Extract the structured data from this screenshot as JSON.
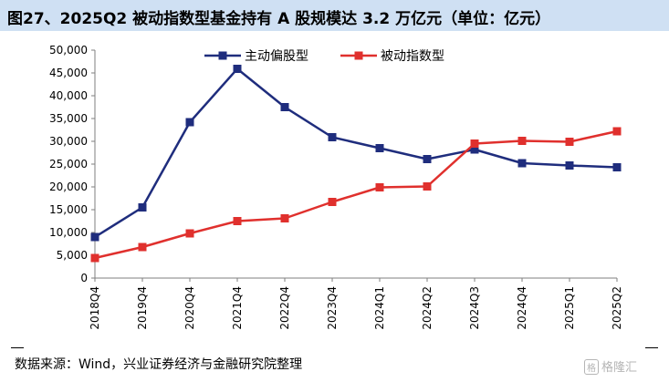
{
  "header": {
    "title": "图27、2025Q2 被动指数型基金持有 A 股规模达 3.2 万亿元（单位：亿元）"
  },
  "footer": {
    "source": "数据来源：Wind，兴业证券经济与金融研究院整理"
  },
  "watermark": {
    "icon": "格",
    "text": "格隆汇"
  },
  "chart_data": {
    "type": "line",
    "categories": [
      "2018Q4",
      "2019Q4",
      "2020Q4",
      "2021Q4",
      "2022Q4",
      "2023Q4",
      "2024Q1",
      "2024Q2",
      "2024Q3",
      "2024Q4",
      "2025Q1",
      "2025Q2"
    ],
    "series": [
      {
        "name": "主动偏股型",
        "color": "#1f2d7d",
        "marker": "square",
        "values": [
          9000,
          15500,
          34200,
          45900,
          37500,
          30900,
          28500,
          26100,
          28200,
          25200,
          24700,
          24300
        ]
      },
      {
        "name": "被动指数型",
        "color": "#e0302d",
        "marker": "square",
        "values": [
          4400,
          6800,
          9800,
          12500,
          13100,
          16700,
          19900,
          20100,
          29500,
          30100,
          29900,
          32200
        ]
      }
    ],
    "yticks": [
      "0",
      "5,000",
      "10,000",
      "15,000",
      "20,000",
      "25,000",
      "30,000",
      "35,000",
      "40,000",
      "45,000",
      "50,000"
    ],
    "ylim": [
      0,
      50000
    ],
    "legend_position": "top-center",
    "grid": false
  }
}
